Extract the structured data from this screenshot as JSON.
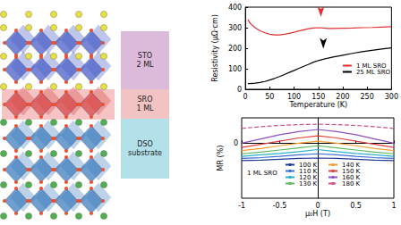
{
  "diagram": {
    "layers": [
      {
        "label": "STO",
        "thickness": "2 ML",
        "color": "#dcbad9"
      },
      {
        "label": "SRO",
        "thickness": "1 ML",
        "color": "#f2c3c3"
      },
      {
        "label": "DSO",
        "thickness": "substrate",
        "color": "#b3e1ea"
      }
    ]
  },
  "chart_data": [
    {
      "type": "line",
      "xlabel": "Temperature (K)",
      "ylabel": "Resistivity (μΩ·cm)",
      "x": [
        5,
        10,
        20,
        30,
        40,
        50,
        60,
        70,
        80,
        90,
        100,
        110,
        120,
        130,
        140,
        150,
        160,
        170,
        180,
        200,
        220,
        240,
        260,
        280,
        300
      ],
      "series": [
        {
          "name": "1 ML SRO",
          "color": "#e03030",
          "line_style": "solid",
          "values": [
            340,
            320,
            300,
            285,
            275,
            268,
            265,
            265,
            268,
            272,
            278,
            284,
            290,
            295,
            298,
            300,
            298,
            296,
            296,
            297,
            298,
            300,
            301,
            303,
            305
          ]
        },
        {
          "name": "25 ML SRO",
          "color": "#000000",
          "line_style": "solid",
          "values": [
            28,
            28,
            30,
            33,
            38,
            45,
            53,
            62,
            72,
            82,
            92,
            102,
            112,
            122,
            132,
            140,
            146,
            152,
            157,
            166,
            175,
            183,
            190,
            196,
            202
          ]
        }
      ],
      "arrows": [
        {
          "series": "1 ML SRO",
          "x": 155,
          "y": 300,
          "color": "#e03030"
        },
        {
          "series": "25 ML SRO",
          "x": 160,
          "y": 146,
          "color": "#000000"
        }
      ],
      "xlim": [
        0,
        300
      ],
      "xticks": [
        0,
        50,
        100,
        150,
        200,
        250,
        300
      ],
      "ylim": [
        0,
        400
      ],
      "yticks": [
        0,
        100,
        200,
        300,
        400
      ],
      "grid": false,
      "legend": "right"
    },
    {
      "type": "line",
      "xlabel": "μ₀H (T)",
      "ylabel": "MR (%)",
      "annotation": "1 ML SRO",
      "x": [
        -1,
        -0.75,
        -0.5,
        -0.25,
        0,
        0.25,
        0.5,
        0.75,
        1
      ],
      "series": [
        {
          "name": "100 K",
          "color": "#1f3a93",
          "line_style": "solid",
          "values": [
            -0.82,
            -0.8,
            -0.76,
            -0.72,
            -0.7,
            -0.72,
            -0.76,
            -0.8,
            -0.82
          ]
        },
        {
          "name": "110 K",
          "color": "#3b6fd6",
          "line_style": "solid",
          "values": [
            -0.72,
            -0.68,
            -0.62,
            -0.55,
            -0.5,
            -0.55,
            -0.62,
            -0.68,
            -0.72
          ]
        },
        {
          "name": "120 K",
          "color": "#2ab0c8",
          "line_style": "solid",
          "values": [
            -0.62,
            -0.55,
            -0.48,
            -0.4,
            -0.3,
            -0.4,
            -0.48,
            -0.55,
            -0.62
          ]
        },
        {
          "name": "130 K",
          "color": "#5cb85c",
          "line_style": "solid",
          "values": [
            -0.5,
            -0.42,
            -0.32,
            -0.22,
            -0.12,
            -0.22,
            -0.32,
            -0.42,
            -0.5
          ]
        },
        {
          "name": "140 K",
          "color": "#f0a030",
          "line_style": "solid",
          "values": [
            -0.35,
            -0.25,
            -0.12,
            0.0,
            0.1,
            0.0,
            -0.12,
            -0.25,
            -0.35
          ]
        },
        {
          "name": "150 K",
          "color": "#e04040",
          "line_style": "solid",
          "values": [
            -0.2,
            -0.05,
            0.1,
            0.25,
            0.35,
            0.25,
            0.1,
            -0.05,
            -0.2
          ]
        },
        {
          "name": "160 K",
          "color": "#9050c0",
          "line_style": "solid",
          "values": [
            0.0,
            0.2,
            0.4,
            0.55,
            0.65,
            0.55,
            0.4,
            0.2,
            0.0
          ]
        },
        {
          "name": "180 K",
          "color": "#d0508a",
          "line_style": "dashed",
          "values": [
            0.7,
            0.78,
            0.84,
            0.88,
            0.9,
            0.88,
            0.84,
            0.78,
            0.7
          ]
        }
      ],
      "xlim": [
        -1,
        1
      ],
      "xticks": [
        -1,
        -0.5,
        0,
        0.5,
        1
      ],
      "ylim": [
        -2.6,
        1.2
      ],
      "yticks": [
        0
      ],
      "grid": false,
      "legend": "bottom"
    }
  ]
}
